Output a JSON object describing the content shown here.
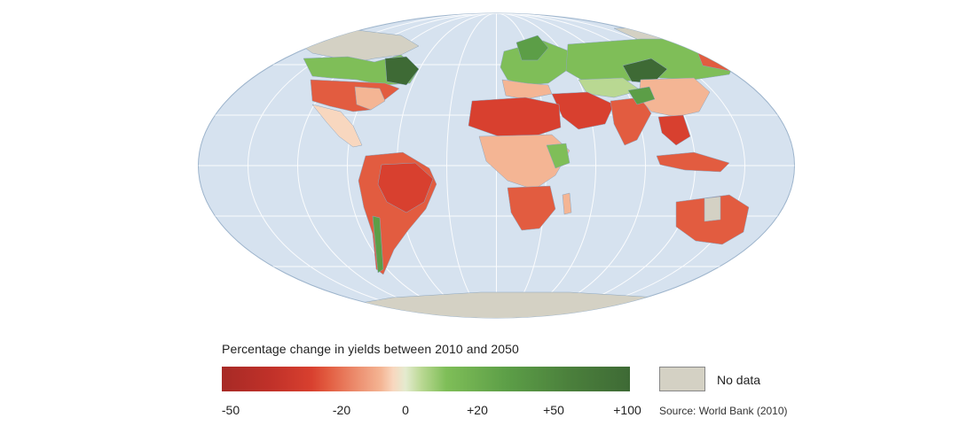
{
  "legend": {
    "title": "Percentage change in yields between 2010 and 2050",
    "ticks": [
      "-50",
      "-20",
      "0",
      "+20",
      "+50",
      "+100"
    ],
    "no_data_label": "No data",
    "source": "Source: World Bank (2010)"
  },
  "colors": {
    "ocean": "#d6e2ef",
    "ocean_border": "#9db4cc",
    "graticule": "#ffffff",
    "no_data": "#d4d1c4",
    "strong_decline": "#d8402f",
    "mild_decline": "#f4b594",
    "slight_change": "#f8d7bf",
    "mild_increase": "#7fbe58",
    "strong_increase": "#3e6a35"
  }
}
